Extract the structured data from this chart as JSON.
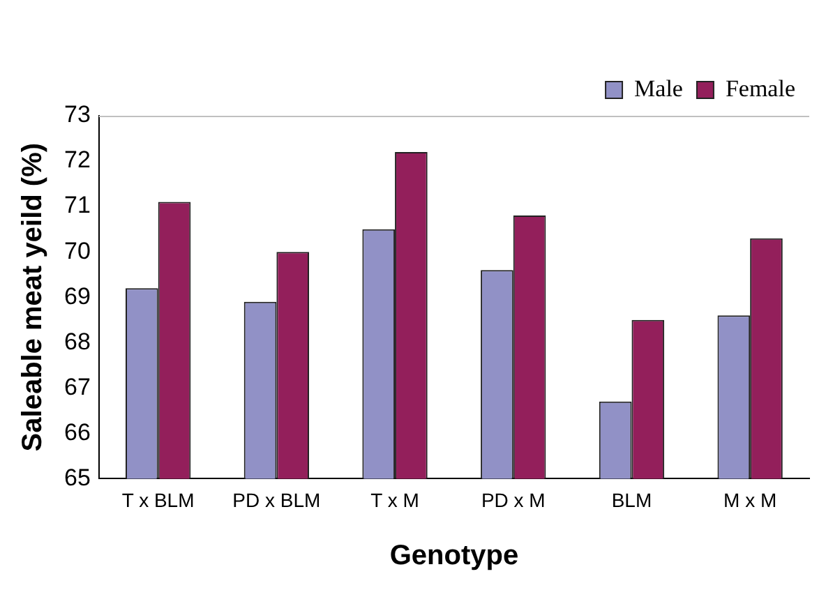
{
  "chart_data": {
    "type": "bar",
    "xlabel": "Genotype",
    "ylabel": "Saleable meat yeild (%)",
    "categories": [
      "T x BLM",
      "PD x BLM",
      "T x M",
      "PD x M",
      "BLM",
      "M x M"
    ],
    "series": [
      {
        "name": "Male",
        "color": "#9191c6",
        "values": [
          69.2,
          68.9,
          70.5,
          69.6,
          66.7,
          68.6
        ]
      },
      {
        "name": "Female",
        "color": "#931f5b",
        "values": [
          71.1,
          70.0,
          72.2,
          70.8,
          68.5,
          70.3
        ]
      }
    ],
    "ylim": [
      65,
      73
    ],
    "yticks": [
      65,
      66,
      67,
      68,
      69,
      70,
      71,
      72,
      73
    ],
    "grid": false,
    "legend": "top right"
  }
}
